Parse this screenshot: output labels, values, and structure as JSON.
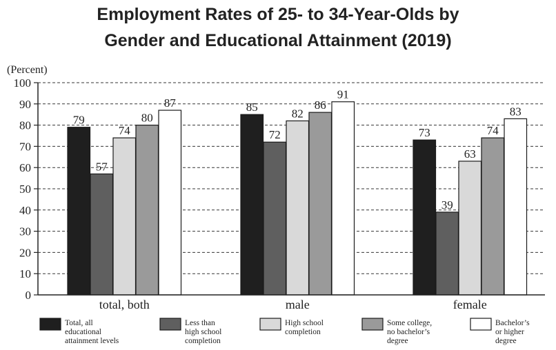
{
  "chart_data": {
    "type": "bar",
    "title_lines": [
      "Employment Rates of 25- to 34-Year-Olds by",
      "Gender and Educational Attainment (2019)"
    ],
    "ylabel": "(Percent)",
    "ylim": [
      0,
      100
    ],
    "yticks": [
      0,
      10,
      20,
      30,
      40,
      50,
      60,
      70,
      80,
      90,
      100
    ],
    "grid": true,
    "categories": [
      "total, both",
      "male",
      "female"
    ],
    "series": [
      {
        "name": "Total, all educational attainment levels",
        "legend_lines": [
          "Total, all",
          "educational",
          "attainment levels"
        ],
        "color": "#1f1f1f",
        "values": [
          79,
          85,
          73
        ]
      },
      {
        "name": "Less than high school completion",
        "legend_lines": [
          "Less than",
          "high school",
          "completion"
        ],
        "color": "#5f5f5f",
        "values": [
          57,
          72,
          39
        ]
      },
      {
        "name": "High school completion",
        "legend_lines": [
          "High school",
          "completion"
        ],
        "color": "#d9d9d9",
        "values": [
          74,
          82,
          63
        ]
      },
      {
        "name": "Some college, no bachelor's degree",
        "legend_lines": [
          "Some college,",
          "no bachelor’s",
          "degree"
        ],
        "color": "#9a9a9a",
        "values": [
          80,
          86,
          74
        ]
      },
      {
        "name": "Bachelor's or higher degree",
        "legend_lines": [
          "Bachelor’s",
          "or higher",
          "degree"
        ],
        "color": "#ffffff",
        "values": [
          87,
          91,
          83
        ]
      }
    ],
    "legend_position": "bottom"
  }
}
